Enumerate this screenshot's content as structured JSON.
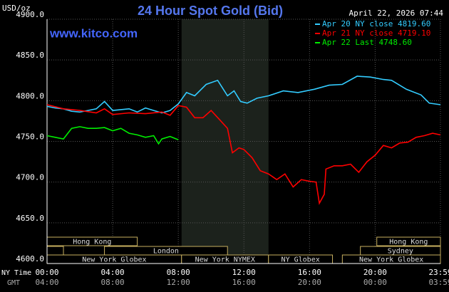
{
  "chart_data": {
    "type": "line",
    "title": "24 Hour Spot Gold (Bid)",
    "unit_label": "USD/oz",
    "timestamp": "April 22, 2026 07:44",
    "watermark": "www.kitco.com",
    "x_axis_label": "NY Time",
    "x2_axis_label": "GMT",
    "xlim": [
      0,
      23.98
    ],
    "xticks": [
      {
        "value": 0,
        "label": "00:00"
      },
      {
        "value": 4,
        "label": "04:00"
      },
      {
        "value": 8,
        "label": "08:00"
      },
      {
        "value": 12,
        "label": "12:00"
      },
      {
        "value": 16,
        "label": "16:00"
      },
      {
        "value": 20,
        "label": "20:00"
      },
      {
        "value": 23.98,
        "label": "23:59"
      }
    ],
    "x2ticks": [
      "04:00",
      "08:00",
      "12:00",
      "16:00",
      "20:00",
      "00:00",
      "03:59"
    ],
    "ylim": [
      4600,
      4900
    ],
    "yticks": [
      {
        "value": 4600,
        "label": "4600.0"
      },
      {
        "value": 4650,
        "label": "4650.0"
      },
      {
        "value": 4700,
        "label": "4700.0"
      },
      {
        "value": 4750,
        "label": "4750.0"
      },
      {
        "value": 4800,
        "label": "4800.0"
      },
      {
        "value": 4850,
        "label": "4850.0"
      },
      {
        "value": 4900,
        "label": "4900.0"
      }
    ],
    "grid": true,
    "shaded_range": [
      8.2,
      13.5
    ],
    "series": [
      {
        "name": "Apr 20 NY close 4819.60",
        "color": "#33ccff",
        "x": [
          0,
          0.5,
          1,
          1.5,
          2,
          2.5,
          3,
          3.5,
          4,
          4.5,
          5,
          5.5,
          6,
          6.5,
          7,
          7.5,
          8,
          8.5,
          9,
          9.7,
          10.4,
          11,
          11.4,
          11.8,
          12.2,
          12.8,
          13.5,
          14.4,
          15.3,
          16.3,
          17.2,
          18,
          18.9,
          19.7,
          20.5,
          21,
          21.9,
          22.8,
          23.3,
          23.98
        ],
        "values": [
          4793,
          4791,
          4790,
          4787,
          4786,
          4788,
          4790,
          4799,
          4788,
          4789,
          4790,
          4786,
          4791,
          4788,
          4785,
          4788,
          4796,
          4810,
          4806,
          4820,
          4825,
          4806,
          4812,
          4799,
          4797,
          4803,
          4806,
          4812,
          4810,
          4814,
          4819,
          4820,
          4830,
          4829,
          4826,
          4825,
          4814,
          4807,
          4797,
          4795
        ]
      },
      {
        "name": "Apr 21 NY close 4719.10",
        "color": "#ff0000",
        "x": [
          0,
          1,
          2,
          3,
          3.5,
          4,
          5,
          6,
          7,
          7.5,
          8,
          8.5,
          9,
          9.5,
          10,
          10.5,
          11,
          11.3,
          11.7,
          12,
          12.5,
          13,
          13.5,
          14,
          14.5,
          15,
          15.5,
          16,
          16.4,
          16.6,
          16.9,
          17,
          17.5,
          18,
          18.5,
          19,
          19.5,
          20,
          20.5,
          21,
          21.5,
          22,
          22.5,
          23,
          23.5,
          23.98
        ],
        "values": [
          4795,
          4790,
          4788,
          4785,
          4790,
          4783,
          4785,
          4784,
          4786,
          4782,
          4794,
          4792,
          4779,
          4779,
          4788,
          4777,
          4766,
          4736,
          4742,
          4740,
          4730,
          4714,
          4710,
          4703,
          4710,
          4694,
          4703,
          4701,
          4700,
          4674,
          4685,
          4716,
          4720,
          4720,
          4722,
          4712,
          4725,
          4733,
          4745,
          4742,
          4748,
          4749,
          4755,
          4757,
          4760,
          4758
        ]
      },
      {
        "name": "Apr 22 Last 4748.60",
        "color": "#00ee00",
        "x": [
          0,
          0.5,
          1,
          1.5,
          2,
          2.5,
          3,
          3.5,
          4,
          4.5,
          5,
          5.5,
          6,
          6.5,
          6.8,
          7,
          7.5,
          8
        ],
        "values": [
          4757,
          4755,
          4753,
          4766,
          4768,
          4766,
          4766,
          4767,
          4763,
          4766,
          4760,
          4758,
          4755,
          4757,
          4747,
          4753,
          4756,
          4752
        ]
      }
    ],
    "sessions": [
      {
        "label": "Hong Kong",
        "start": 0,
        "end": 5.5,
        "row": 0
      },
      {
        "label": "Hong Kong",
        "start": 20.1,
        "end": 23.98,
        "row": 0
      },
      {
        "start": 0,
        "end": 1,
        "row": 1
      },
      {
        "label": "London",
        "start": 3.5,
        "end": 11,
        "row": 1
      },
      {
        "label": "Sydney",
        "start": 19.1,
        "end": 23.98,
        "row": 1
      },
      {
        "label": "New York Globex",
        "start": 0,
        "end": 8.2,
        "row": 2
      },
      {
        "label": "New York NYMEX",
        "start": 8.2,
        "end": 13.5,
        "row": 2
      },
      {
        "label": "NY Globex",
        "start": 13.5,
        "end": 17.4,
        "row": 2
      },
      {
        "label": "New York Globex",
        "start": 18,
        "end": 23.98,
        "row": 2
      }
    ]
  }
}
